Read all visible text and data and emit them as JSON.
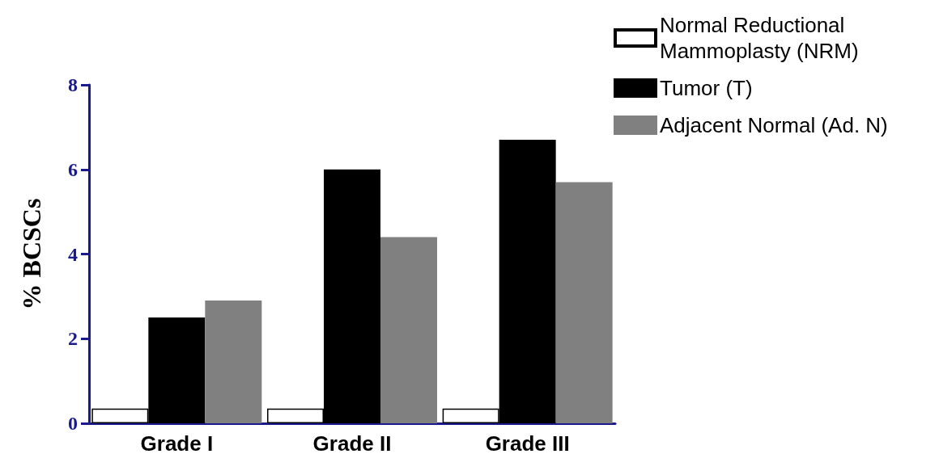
{
  "chart_data": {
    "type": "bar",
    "ylabel": "% BCSCs",
    "categories": [
      "Grade I",
      "Grade II",
      "Grade III"
    ],
    "series": [
      {
        "name": "Normal Reductional Mammoplasty (NRM)",
        "color": "#ffffff",
        "values": [
          0.35,
          0.35,
          0.35
        ]
      },
      {
        "name": "Tumor (T)",
        "color": "#000000",
        "values": [
          2.5,
          6.0,
          6.7
        ]
      },
      {
        "name": "Adjacent Normal (Ad. N)",
        "color": "#808080",
        "values": [
          2.9,
          4.4,
          5.7
        ]
      }
    ],
    "ylim": [
      0,
      8
    ],
    "yticks": [
      0,
      2,
      4,
      6,
      8
    ],
    "grid": false,
    "legend": "top right"
  }
}
